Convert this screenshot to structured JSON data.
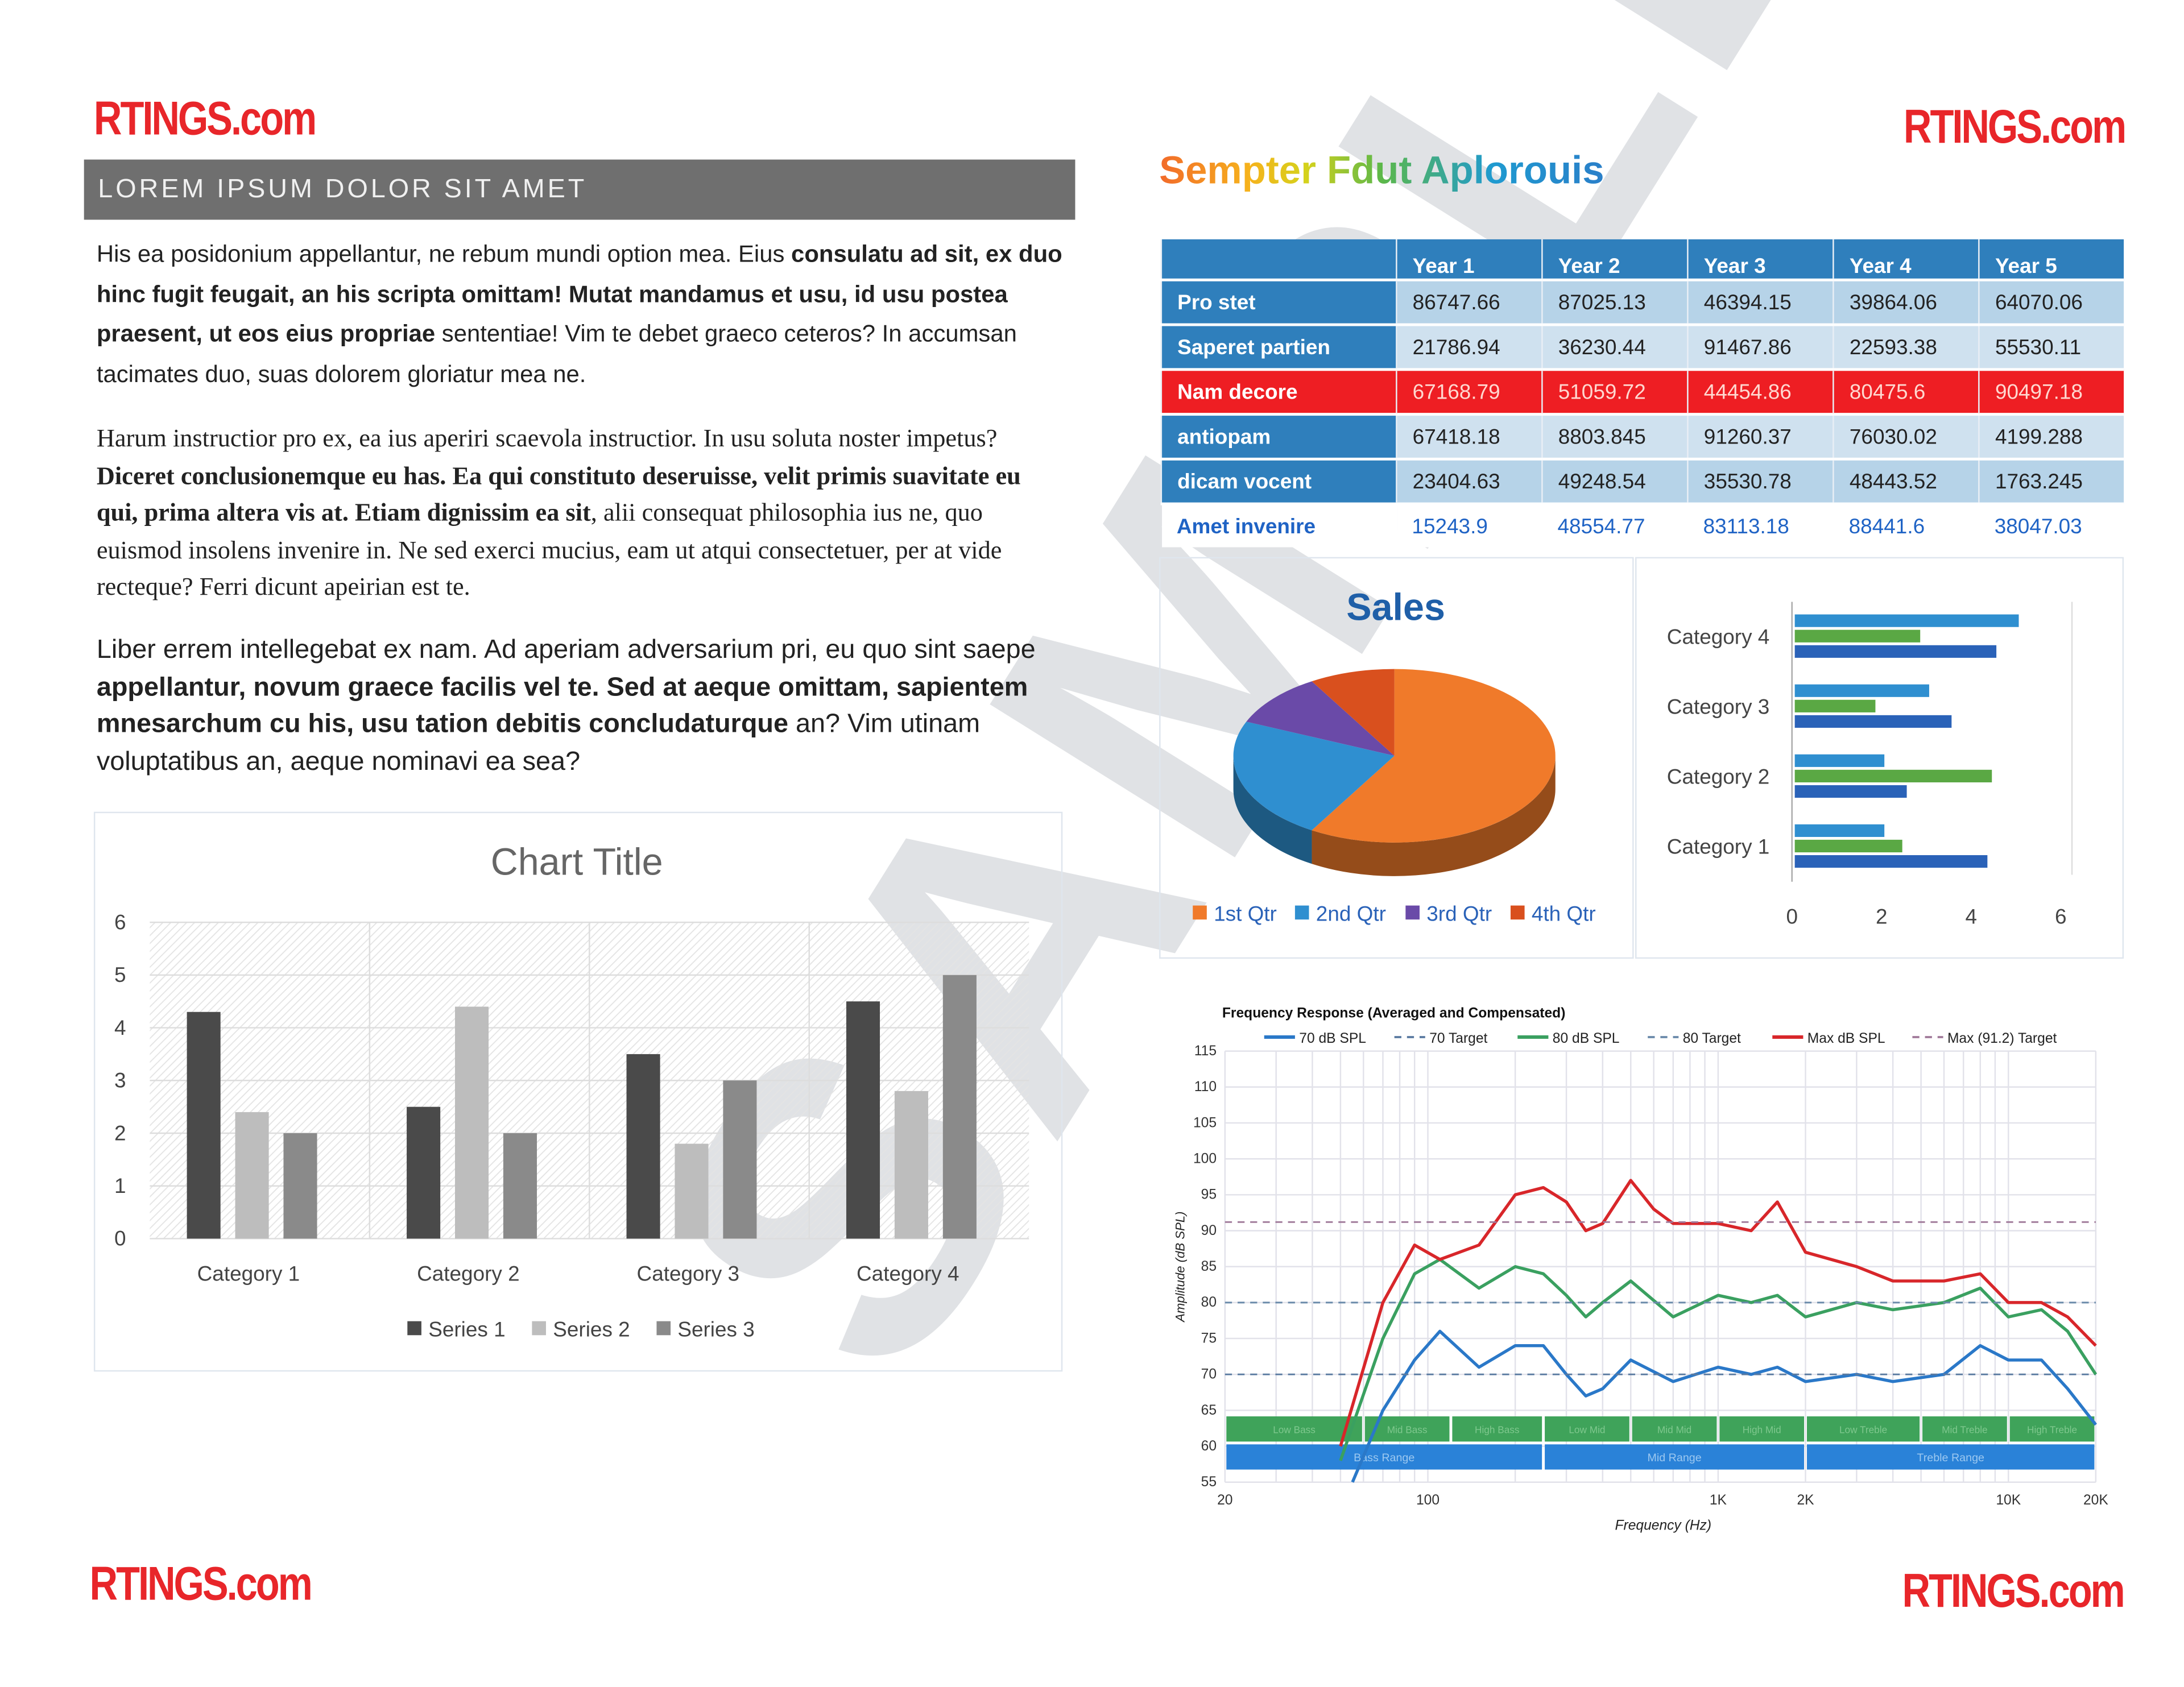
{
  "logo_text": "RTINGS.com",
  "watermark": "SAMPLE",
  "banner": "LOREM IPSUM DOLOR SIT AMET",
  "paragraphs": [
    [
      {
        "t": "His ea posidonium appellantur, ne rebum mundi option mea. Eius ",
        "b": false
      },
      {
        "t": "consulatu ad sit, ex duo hinc fugit feugait, an his scripta omittam! Mutat mandamus et usu, id usu postea praesent, ut eos eius propriae",
        "b": true
      },
      {
        "t": " sententiae! Vim te debet graeco ceteros? In accumsan tacimates duo, suas dolorem gloriatur mea ne.",
        "b": false
      }
    ],
    [
      {
        "t": "Harum instructior pro ex, ea ius aperiri scaevola instructior. In usu soluta noster impetus? ",
        "b": false
      },
      {
        "t": "Diceret conclusionemque eu has. Ea qui constituto deseruisse, velit primis suavitate eu qui, prima altera vis at. Etiam dignissim ea sit",
        "b": true
      },
      {
        "t": ", alii consequat philosophia ius ne, quo euismod insolens invenire in. Ne sed exerci mucius, eam ut atqui consectetuer, per at vide recteque? Ferri dicunt apeirian est te.",
        "b": false
      }
    ],
    [
      {
        "t": "Liber errem intellegebat ex nam. Ad aperiam adversarium pri, eu quo sint saepe ",
        "b": false
      },
      {
        "t": "appellantur, novum graece facilis vel te. Sed at aeque omittam, sapientem mnesarchum cu his, usu tation debitis concludaturque",
        "b": true
      },
      {
        "t": " an? Vim utinam voluptatibus an, aeque nominavi ea sea?",
        "b": false
      }
    ]
  ],
  "right_title": "Sempter Fdut Aplorouis",
  "table": {
    "headers": [
      "",
      "Year 1",
      "Year 2",
      "Year 3",
      "Year 4",
      "Year 5"
    ],
    "rows": [
      {
        "label": "Pro stet",
        "values": [
          "86747.66",
          "87025.13",
          "46394.15",
          "39864.06",
          "64070.06"
        ]
      },
      {
        "label": "Saperet partien",
        "values": [
          "21786.94",
          "36230.44",
          "91467.86",
          "22593.38",
          "55530.11"
        ]
      },
      {
        "label": "Nam decore",
        "values": [
          "67168.79",
          "51059.72",
          "44454.86",
          "80475.6",
          "90497.18"
        ],
        "highlight": "#ee1e23"
      },
      {
        "label": "antiopam",
        "values": [
          "67418.18",
          "8803.845",
          "91260.37",
          "76030.02",
          "4199.288"
        ]
      },
      {
        "label": "dicam vocent",
        "values": [
          "23404.63",
          "49248.54",
          "35530.78",
          "48443.52",
          "1763.245"
        ]
      },
      {
        "label": "Amet invenire",
        "values": [
          "15243.9",
          "48554.77",
          "83113.18",
          "88441.6",
          "38047.03"
        ]
      }
    ]
  },
  "chart_data": [
    {
      "type": "bar",
      "title": "Chart Title",
      "categories": [
        "Category 1",
        "Category 2",
        "Category 3",
        "Category 4"
      ],
      "series": [
        {
          "name": "Series 1",
          "values": [
            4.3,
            2.5,
            3.5,
            4.5
          ],
          "color": "#4a4a4a"
        },
        {
          "name": "Series 2",
          "values": [
            2.4,
            4.4,
            1.8,
            2.8
          ],
          "color": "#bdbdbd"
        },
        {
          "name": "Series 3",
          "values": [
            2,
            2,
            3,
            5
          ],
          "color": "#8a8a8a"
        }
      ],
      "ylim": [
        0,
        6
      ],
      "yticks": [
        0,
        1,
        2,
        3,
        4,
        5,
        6
      ],
      "grid": true,
      "legend": "bottom"
    },
    {
      "type": "pie",
      "title": "Sales",
      "categories": [
        "1st Qtr",
        "2nd Qtr",
        "3rd Qtr",
        "4th Qtr"
      ],
      "values": [
        8.2,
        3.2,
        1.4,
        1.2
      ],
      "colors": [
        "#f07a2a",
        "#2f8fd0",
        "#6a4aa8",
        "#d9501e"
      ],
      "style": "3d",
      "legend": "bottom"
    },
    {
      "type": "bar",
      "orientation": "horizontal",
      "categories": [
        "Category 1",
        "Category 2",
        "Category 3",
        "Category 4"
      ],
      "series": [
        {
          "name": "Series 1",
          "values": [
            4.3,
            2.5,
            3.5,
            4.5
          ],
          "color": "#2a62b8"
        },
        {
          "name": "Series 2",
          "values": [
            2.4,
            4.4,
            1.8,
            2.8
          ],
          "color": "#5aa844"
        },
        {
          "name": "Series 3",
          "values": [
            2,
            2,
            3,
            5
          ],
          "color": "#2f8fd0"
        }
      ],
      "xlim": [
        0,
        6
      ],
      "xticks": [
        0,
        2,
        4,
        6
      ],
      "legend": "none"
    },
    {
      "type": "line",
      "title": "Frequency Response (Averaged and Compensated)",
      "xlabel": "Frequency (Hz)",
      "ylabel": "Amplitude (dB SPL)",
      "xscale": "log",
      "xlim": [
        20,
        20000
      ],
      "ylim": [
        55,
        115
      ],
      "xticks": [
        {
          "v": 20,
          "l": "20"
        },
        {
          "v": 100,
          "l": "100"
        },
        {
          "v": 1000,
          "l": "1K"
        },
        {
          "v": 2000,
          "l": "2K"
        },
        {
          "v": 10000,
          "l": "10K"
        },
        {
          "v": 20000,
          "l": "20K"
        }
      ],
      "yticks": [
        55,
        60,
        65,
        70,
        75,
        80,
        85,
        90,
        95,
        100,
        105,
        110,
        115
      ],
      "series": [
        {
          "name": "70 dB SPL",
          "color": "#2a78c8",
          "dash": false,
          "points": [
            [
              55,
              55
            ],
            [
              70,
              65
            ],
            [
              90,
              72
            ],
            [
              110,
              76
            ],
            [
              150,
              71
            ],
            [
              200,
              74
            ],
            [
              250,
              74
            ],
            [
              300,
              70
            ],
            [
              350,
              67
            ],
            [
              400,
              68
            ],
            [
              500,
              72
            ],
            [
              700,
              69
            ],
            [
              1000,
              71
            ],
            [
              1300,
              70
            ],
            [
              1600,
              71
            ],
            [
              2000,
              69
            ],
            [
              3000,
              70
            ],
            [
              4000,
              69
            ],
            [
              6000,
              70
            ],
            [
              8000,
              74
            ],
            [
              10000,
              72
            ],
            [
              13000,
              72
            ],
            [
              16000,
              68
            ],
            [
              20000,
              63
            ]
          ]
        },
        {
          "name": "70 Target",
          "color": "#5a7aa0",
          "dash": true,
          "points": [
            [
              20,
              70
            ],
            [
              20000,
              70
            ]
          ]
        },
        {
          "name": "80 dB SPL",
          "color": "#3aa060",
          "dash": false,
          "points": [
            [
              50,
              58
            ],
            [
              70,
              75
            ],
            [
              90,
              84
            ],
            [
              110,
              86
            ],
            [
              150,
              82
            ],
            [
              200,
              85
            ],
            [
              250,
              84
            ],
            [
              300,
              81
            ],
            [
              350,
              78
            ],
            [
              400,
              80
            ],
            [
              500,
              83
            ],
            [
              700,
              78
            ],
            [
              1000,
              81
            ],
            [
              1300,
              80
            ],
            [
              1600,
              81
            ],
            [
              2000,
              78
            ],
            [
              3000,
              80
            ],
            [
              4000,
              79
            ],
            [
              6000,
              80
            ],
            [
              8000,
              82
            ],
            [
              10000,
              78
            ],
            [
              13000,
              79
            ],
            [
              16000,
              76
            ],
            [
              20000,
              70
            ]
          ]
        },
        {
          "name": "80 Target",
          "color": "#6a8aaa",
          "dash": true,
          "points": [
            [
              20,
              80
            ],
            [
              20000,
              80
            ]
          ]
        },
        {
          "name": "Max dB SPL",
          "color": "#d8262a",
          "dash": false,
          "points": [
            [
              50,
              60
            ],
            [
              70,
              80
            ],
            [
              90,
              88
            ],
            [
              110,
              86
            ],
            [
              150,
              88
            ],
            [
              200,
              95
            ],
            [
              250,
              96
            ],
            [
              300,
              94
            ],
            [
              350,
              90
            ],
            [
              400,
              91
            ],
            [
              500,
              97
            ],
            [
              600,
              93
            ],
            [
              700,
              91
            ],
            [
              1000,
              91
            ],
            [
              1300,
              90
            ],
            [
              1600,
              94
            ],
            [
              2000,
              87
            ],
            [
              3000,
              85
            ],
            [
              4000,
              83
            ],
            [
              6000,
              83
            ],
            [
              8000,
              84
            ],
            [
              10000,
              80
            ],
            [
              13000,
              80
            ],
            [
              16000,
              78
            ],
            [
              20000,
              74
            ]
          ]
        },
        {
          "name": "Max (91.2) Target",
          "color": "#a07a9a",
          "dash": true,
          "points": [
            [
              20,
              91.2
            ],
            [
              20000,
              91.2
            ]
          ]
        }
      ],
      "bands": [
        {
          "name": "Low Bass",
          "from": 20,
          "to": 60
        },
        {
          "name": "Mid Bass",
          "from": 60,
          "to": 120
        },
        {
          "name": "High Bass",
          "from": 120,
          "to": 250
        },
        {
          "name": "Low Mid",
          "from": 250,
          "to": 500
        },
        {
          "name": "Mid Mid",
          "from": 500,
          "to": 1000
        },
        {
          "name": "High Mid",
          "from": 1000,
          "to": 2000
        },
        {
          "name": "Low Treble",
          "from": 2000,
          "to": 5000
        },
        {
          "name": "Mid Treble",
          "from": 5000,
          "to": 10000
        },
        {
          "name": "High Treble",
          "from": 10000,
          "to": 20000
        }
      ],
      "ranges": [
        {
          "name": "Bass Range",
          "from": 20,
          "to": 250
        },
        {
          "name": "Mid Range",
          "from": 250,
          "to": 2000
        },
        {
          "name": "Treble Range",
          "from": 2000,
          "to": 20000
        }
      ],
      "legend": "top"
    }
  ]
}
